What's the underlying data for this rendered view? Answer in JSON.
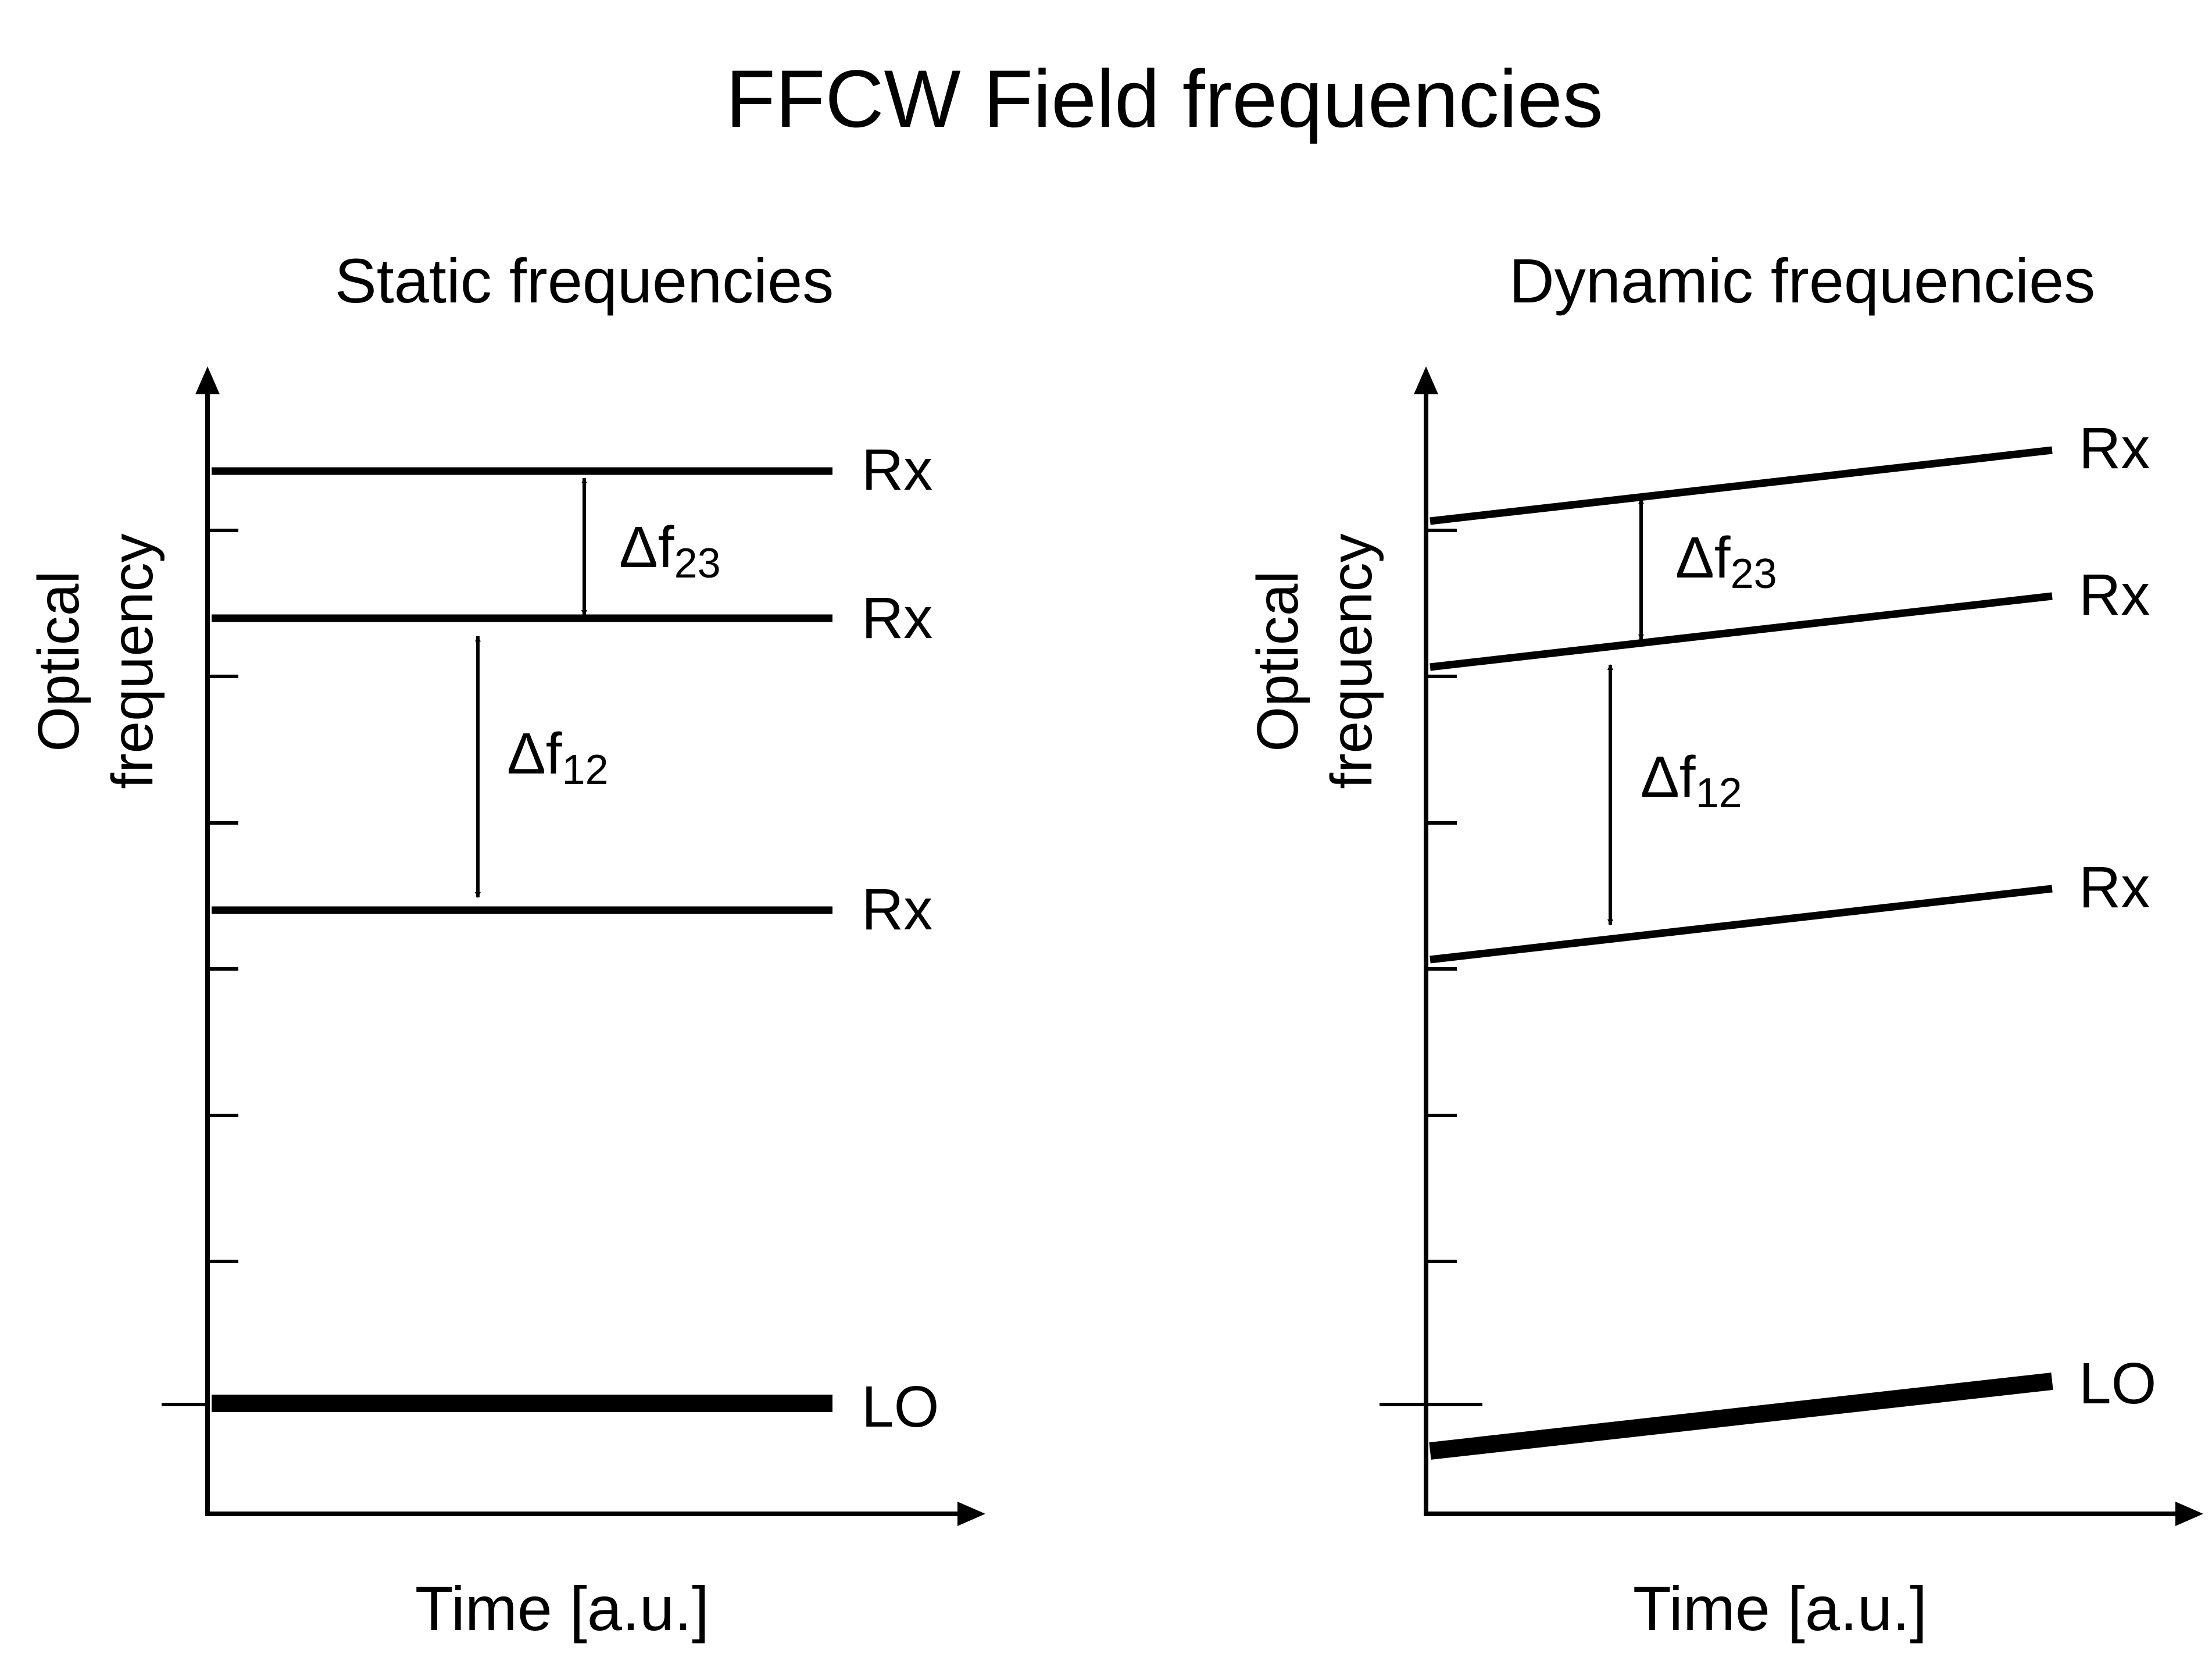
{
  "title": "FFCW Field frequencies",
  "panels": [
    {
      "subtitle": "Static frequencies",
      "ylabel_line1": "Optical",
      "ylabel_line2": "frequency",
      "xlabel": "Time [a.u.]",
      "line_labels": [
        "Rx",
        "Rx",
        "Rx",
        "LO"
      ],
      "arrows": [
        {
          "delta": "Δf",
          "sub": "23"
        },
        {
          "delta": "Δf",
          "sub": "12"
        }
      ]
    },
    {
      "subtitle": "Dynamic frequencies",
      "ylabel_line1": "Optical",
      "ylabel_line2": "frequency",
      "xlabel": "Time [a.u.]",
      "line_labels": [
        "Rx",
        "Rx",
        "Rx",
        "LO"
      ],
      "arrows": [
        {
          "delta": "Δf",
          "sub": "23"
        },
        {
          "delta": "Δf",
          "sub": "12"
        }
      ]
    }
  ]
}
